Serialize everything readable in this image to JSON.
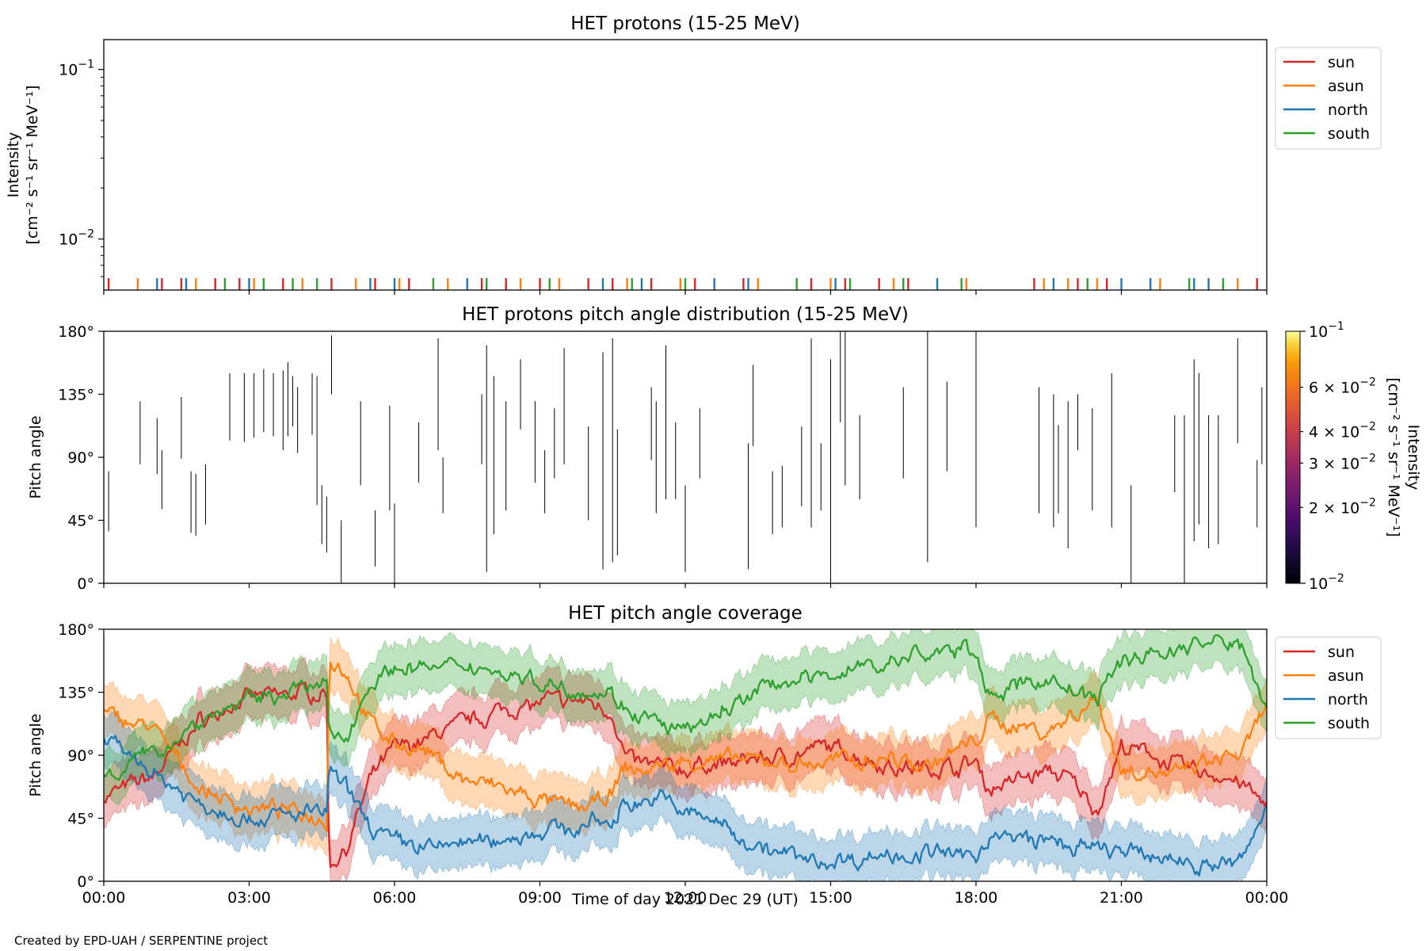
{
  "colors": {
    "sun": "#d62728",
    "asun": "#ff7f0e",
    "north": "#1f77b4",
    "south": "#2ca02c"
  },
  "footer": {
    "credit": "Created by EPD-UAH / SERPENTINE project"
  },
  "shared_x": {
    "label": "Time of day 2021 Dec 29 (UT)",
    "range_hours": [
      0,
      24
    ],
    "tick_hours": [
      0,
      3,
      6,
      9,
      12,
      15,
      18,
      21,
      24
    ],
    "tick_labels": [
      "00:00",
      "03:00",
      "06:00",
      "09:00",
      "12:00",
      "15:00",
      "18:00",
      "21:00",
      "00:00"
    ]
  },
  "chart_data": [
    {
      "type": "line",
      "title": "HET protons (15-25 MeV)",
      "ylabel_line1": "Intensity",
      "ylabel_line2": "[cm⁻² s⁻¹ sr⁻¹ MeV⁻¹]",
      "yscale": "log",
      "ylim": [
        0.005,
        0.15
      ],
      "yticks": [
        {
          "value": 0.1,
          "base": "10",
          "exp": "−1"
        },
        {
          "value": 0.01,
          "base": "10",
          "exp": "−2"
        }
      ],
      "legend": {
        "position": "right-top",
        "entries": [
          "sun",
          "asun",
          "north",
          "south"
        ]
      },
      "series": [
        {
          "name": "sun",
          "spike_times_h": [
            0.1,
            1.2,
            1.6,
            2.3,
            2.8,
            3.7,
            4.7,
            5.6,
            6.3,
            7.8,
            8.3,
            9.0,
            10.0,
            10.5,
            11.3,
            12.2,
            13.2,
            14.6,
            15.3,
            16.0,
            16.6,
            19.2,
            20.1,
            20.7,
            23.8
          ]
        },
        {
          "name": "asun",
          "spike_times_h": [
            0.7,
            1.9,
            3.1,
            4.1,
            5.2,
            6.1,
            7.1,
            8.6,
            9.4,
            10.8,
            11.9,
            13.5,
            15.0,
            16.3,
            17.8,
            19.4,
            19.9,
            20.5,
            21.8,
            23.4
          ]
        },
        {
          "name": "north",
          "spike_times_h": [
            1.1,
            1.7,
            3.0,
            5.5,
            6.0,
            7.5,
            10.3,
            11.1,
            12.6,
            13.3,
            15.1,
            17.2,
            19.6,
            21.0,
            21.6,
            22.5,
            22.8
          ]
        },
        {
          "name": "south",
          "spike_times_h": [
            2.5,
            3.3,
            3.9,
            4.4,
            6.8,
            7.9,
            9.2,
            10.9,
            12.0,
            14.3,
            15.4,
            16.5,
            17.7,
            20.3,
            22.4,
            23.1
          ]
        }
      ]
    },
    {
      "type": "heatmap",
      "title": "HET protons pitch angle distribution (15-25 MeV)",
      "ylabel": "Pitch angle",
      "ylim": [
        0,
        180
      ],
      "yticks": [
        0,
        45,
        90,
        135,
        180
      ],
      "ytick_labels": [
        "0°",
        "45°",
        "90°",
        "135°",
        "180°"
      ],
      "colorbar": {
        "label_line1": "Intensity",
        "label_line2": "[cm⁻² s⁻¹ sr⁻¹ MeV⁻¹]",
        "scale": "log",
        "range": [
          0.01,
          0.1
        ],
        "ticks": [
          {
            "value": 0.1,
            "mant": "",
            "base": "10",
            "exp": "−1"
          },
          {
            "value": 0.06,
            "mant": "6 × ",
            "base": "10",
            "exp": "−2"
          },
          {
            "value": 0.04,
            "mant": "4 × ",
            "base": "10",
            "exp": "−2"
          },
          {
            "value": 0.03,
            "mant": "3 × ",
            "base": "10",
            "exp": "−2"
          },
          {
            "value": 0.02,
            "mant": "2 × ",
            "base": "10",
            "exp": "−2"
          },
          {
            "value": 0.01,
            "mant": "",
            "base": "10",
            "exp": "−2"
          }
        ]
      },
      "segments": [
        [
          0.1,
          37,
          80
        ],
        [
          0.75,
          85,
          130
        ],
        [
          1.1,
          78,
          118
        ],
        [
          1.2,
          53,
          95
        ],
        [
          1.6,
          89,
          133
        ],
        [
          1.8,
          36,
          80
        ],
        [
          1.9,
          34,
          78
        ],
        [
          2.1,
          42,
          85
        ],
        [
          2.6,
          102,
          150
        ],
        [
          2.9,
          101,
          150
        ],
        [
          3.1,
          104,
          150
        ],
        [
          3.3,
          108,
          153
        ],
        [
          3.5,
          105,
          150
        ],
        [
          3.7,
          95,
          152
        ],
        [
          3.8,
          105,
          158
        ],
        [
          3.9,
          112,
          148
        ],
        [
          4.0,
          93,
          140
        ],
        [
          4.3,
          106,
          150
        ],
        [
          4.4,
          56,
          148
        ],
        [
          4.5,
          28,
          70
        ],
        [
          4.6,
          22,
          62
        ],
        [
          4.7,
          135,
          177
        ],
        [
          4.9,
          0,
          45
        ],
        [
          5.3,
          70,
          130
        ],
        [
          5.6,
          12,
          52
        ],
        [
          5.9,
          52,
          127
        ],
        [
          6.0,
          0,
          57
        ],
        [
          6.5,
          72,
          115
        ],
        [
          6.9,
          95,
          175
        ],
        [
          7.0,
          50,
          90
        ],
        [
          7.8,
          85,
          135
        ],
        [
          7.9,
          8,
          170
        ],
        [
          8.05,
          35,
          148
        ],
        [
          8.3,
          52,
          130
        ],
        [
          8.6,
          110,
          160
        ],
        [
          8.9,
          72,
          130
        ],
        [
          9.1,
          50,
          95
        ],
        [
          9.3,
          75,
          125
        ],
        [
          9.5,
          85,
          168
        ],
        [
          10.0,
          45,
          112
        ],
        [
          10.3,
          10,
          165
        ],
        [
          10.5,
          15,
          175
        ],
        [
          10.6,
          20,
          110
        ],
        [
          11.3,
          88,
          140
        ],
        [
          11.4,
          50,
          130
        ],
        [
          11.6,
          60,
          170
        ],
        [
          11.8,
          60,
          115
        ],
        [
          12.0,
          8,
          70
        ],
        [
          12.3,
          75,
          125
        ],
        [
          13.3,
          10,
          100
        ],
        [
          13.4,
          98,
          156
        ],
        [
          13.8,
          35,
          80
        ],
        [
          14.0,
          40,
          84
        ],
        [
          14.4,
          55,
          112
        ],
        [
          14.6,
          40,
          175
        ],
        [
          14.8,
          52,
          100
        ],
        [
          15.0,
          0,
          160
        ],
        [
          15.2,
          115,
          180
        ],
        [
          15.3,
          70,
          180
        ],
        [
          15.6,
          60,
          120
        ],
        [
          16.5,
          75,
          140
        ],
        [
          17.0,
          15,
          180
        ],
        [
          17.4,
          80,
          144
        ],
        [
          18.0,
          40,
          180
        ],
        [
          19.3,
          50,
          140
        ],
        [
          19.6,
          40,
          135
        ],
        [
          19.7,
          50,
          113
        ],
        [
          19.9,
          25,
          130
        ],
        [
          20.1,
          95,
          135
        ],
        [
          20.4,
          52,
          125
        ],
        [
          20.8,
          40,
          150
        ],
        [
          21.2,
          0,
          70
        ],
        [
          22.1,
          65,
          120
        ],
        [
          22.3,
          0,
          120
        ],
        [
          22.5,
          30,
          160
        ],
        [
          22.6,
          42,
          150
        ],
        [
          22.8,
          25,
          120
        ],
        [
          23.0,
          28,
          120
        ],
        [
          23.4,
          100,
          175
        ],
        [
          23.8,
          40,
          88
        ],
        [
          23.9,
          85,
          140
        ]
      ]
    },
    {
      "type": "area",
      "title": "HET pitch angle coverage",
      "ylabel": "Pitch angle",
      "ylim": [
        0,
        180
      ],
      "yticks": [
        0,
        45,
        90,
        135,
        180
      ],
      "ytick_labels": [
        "0°",
        "45°",
        "90°",
        "135°",
        "180°"
      ],
      "legend": {
        "position": "right-top",
        "entries": [
          "sun",
          "asun",
          "north",
          "south"
        ]
      },
      "x_hours": [
        0,
        1,
        2,
        3,
        4,
        4.6,
        4.65,
        5,
        5.5,
        6,
        6.5,
        7,
        7.5,
        8,
        8.5,
        9,
        9.5,
        10,
        10.5,
        10.75,
        11,
        11.5,
        12,
        12.5,
        13,
        13.5,
        14,
        14.5,
        15,
        15.5,
        16,
        16.5,
        17,
        17.5,
        18,
        18.3,
        18.5,
        19,
        19.5,
        20,
        20.5,
        21,
        21.5,
        22,
        22.5,
        23,
        23.5,
        24
      ],
      "series": [
        {
          "name": "sun",
          "values": [
            60,
            75,
            115,
            130,
            135,
            135,
            10,
            25,
            70,
            95,
            100,
            108,
            115,
            120,
            125,
            128,
            128,
            128,
            122,
            90,
            85,
            82,
            80,
            83,
            85,
            88,
            90,
            92,
            95,
            90,
            85,
            82,
            80,
            82,
            85,
            65,
            70,
            75,
            80,
            70,
            50,
            95,
            90,
            85,
            80,
            75,
            70,
            52
          ]
        },
        {
          "name": "asun",
          "values": [
            120,
            110,
            65,
            52,
            48,
            45,
            160,
            150,
            112,
            100,
            95,
            82,
            72,
            68,
            62,
            56,
            52,
            55,
            60,
            80,
            78,
            82,
            85,
            86,
            87,
            85,
            84,
            83,
            85,
            88,
            90,
            87,
            85,
            90,
            100,
            115,
            112,
            112,
            108,
            120,
            130,
            80,
            78,
            75,
            80,
            85,
            90,
            125
          ]
        },
        {
          "name": "north",
          "values": [
            100,
            80,
            55,
            45,
            48,
            50,
            80,
            65,
            40,
            30,
            27,
            26,
            28,
            30,
            32,
            35,
            38,
            40,
            42,
            55,
            58,
            60,
            50,
            45,
            35,
            28,
            20,
            15,
            15,
            15,
            18,
            20,
            22,
            18,
            15,
            35,
            32,
            30,
            28,
            25,
            22,
            20,
            18,
            15,
            12,
            12,
            15,
            55
          ]
        },
        {
          "name": "south",
          "values": [
            75,
            90,
            115,
            130,
            138,
            140,
            100,
            105,
            145,
            150,
            152,
            150,
            152,
            150,
            148,
            142,
            140,
            138,
            132,
            125,
            118,
            110,
            105,
            115,
            125,
            135,
            142,
            145,
            148,
            152,
            155,
            158,
            160,
            165,
            165,
            130,
            135,
            140,
            145,
            135,
            130,
            160,
            162,
            165,
            168,
            170,
            168,
            125
          ]
        }
      ],
      "band_halfwidth_deg": 18
    }
  ]
}
